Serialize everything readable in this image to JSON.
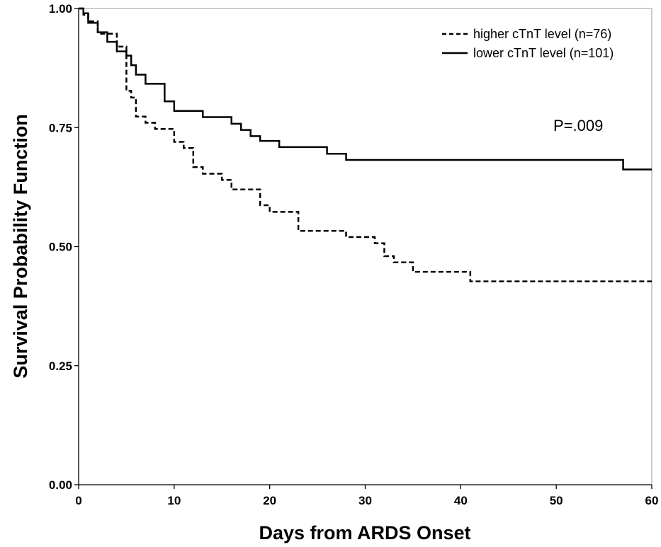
{
  "chart_data": {
    "type": "line",
    "subtype": "kaplan-meier step",
    "xlabel": "Days from ARDS Onset",
    "ylabel": "Survival Probability Function",
    "xlim": [
      0,
      60
    ],
    "ylim": [
      0,
      1
    ],
    "x_ticks": [
      "0",
      "10",
      "20",
      "30",
      "40",
      "50",
      "60"
    ],
    "y_ticks": [
      "0.00",
      "0.25",
      "0.50",
      "0.75",
      "1.00"
    ],
    "grid": false,
    "legend_position": "top-right",
    "annotation": "P=.009",
    "series": [
      {
        "name": "higher cTnT level (n=76)",
        "line_style": "dashed",
        "color": "#000000",
        "x": [
          0,
          0.5,
          1,
          2,
          4,
          5,
          5.5,
          6,
          7,
          8,
          10,
          11,
          12,
          13,
          15,
          16,
          19,
          20,
          23,
          28,
          31,
          32,
          33,
          35,
          41,
          60
        ],
        "y": [
          1.0,
          0.987,
          0.973,
          0.947,
          0.92,
          0.827,
          0.813,
          0.773,
          0.76,
          0.747,
          0.72,
          0.707,
          0.667,
          0.653,
          0.64,
          0.62,
          0.587,
          0.573,
          0.533,
          0.52,
          0.507,
          0.48,
          0.467,
          0.447,
          0.427,
          0.427
        ]
      },
      {
        "name": "lower cTnT level (n=101)",
        "line_style": "solid",
        "color": "#000000",
        "x": [
          0,
          0.5,
          1,
          2,
          3,
          4,
          5,
          5.5,
          6,
          7,
          9,
          10,
          13,
          16,
          17,
          18,
          19,
          21,
          26,
          28,
          57,
          60
        ],
        "y": [
          1.0,
          0.99,
          0.97,
          0.95,
          0.93,
          0.91,
          0.901,
          0.881,
          0.861,
          0.842,
          0.805,
          0.785,
          0.772,
          0.758,
          0.745,
          0.732,
          0.722,
          0.709,
          0.695,
          0.682,
          0.662,
          0.662
        ]
      }
    ]
  }
}
